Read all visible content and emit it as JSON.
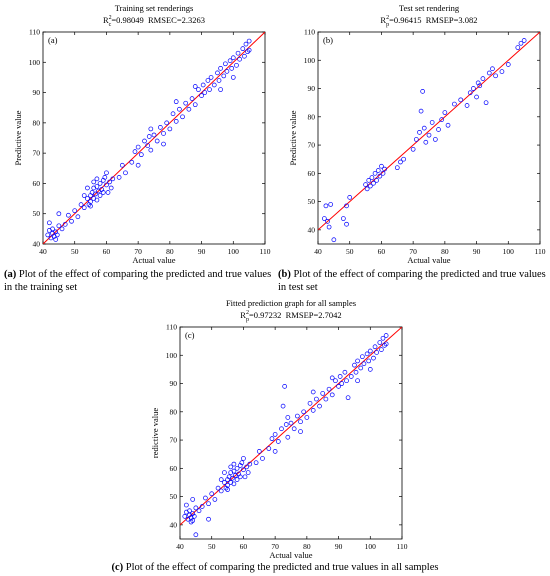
{
  "captions": {
    "a_tag": "(a)",
    "a_text": " Plot of the effect of comparing the predicted and true values in the training set",
    "b_tag": "(b)",
    "b_text": " Plot of the effect of comparing the predicted and true values in test set",
    "c_tag": "(c)",
    "c_text": " Plot of the effect of comparing the predicted and true values in all samples"
  },
  "chart_data": [
    {
      "type": "scatter",
      "panel_label": "(a)",
      "title": "Training set renderings",
      "stats_r2": "0.98049",
      "stats_r2_sub": "c",
      "stats_rmse": "RMSEC=2.3263",
      "xlabel": "Actual value",
      "ylabel": "Predictive value",
      "xlim": [
        40,
        110
      ],
      "ylim": [
        40,
        110
      ],
      "xticks": [
        40,
        50,
        60,
        70,
        80,
        90,
        100,
        110
      ],
      "yticks": [
        40,
        50,
        60,
        70,
        80,
        90,
        100,
        110
      ],
      "grid": false,
      "fit_line": {
        "x": [
          40,
          110
        ],
        "y": [
          40,
          110
        ],
        "color": "#ff0000"
      },
      "marker_color": "#0000ff",
      "points": [
        [
          41.5,
          43.0
        ],
        [
          42.0,
          44.5
        ],
        [
          42.5,
          42.0
        ],
        [
          43.0,
          43.5
        ],
        [
          43.0,
          45.0
        ],
        [
          43.5,
          42.5
        ],
        [
          44.0,
          44.0
        ],
        [
          44.0,
          41.5
        ],
        [
          44.5,
          43.0
        ],
        [
          45.0,
          46.0
        ],
        [
          42.0,
          47.0
        ],
        [
          46.0,
          45.0
        ],
        [
          47.0,
          46.5
        ],
        [
          45.0,
          50.0
        ],
        [
          48.0,
          49.5
        ],
        [
          49.0,
          47.5
        ],
        [
          50.0,
          51.0
        ],
        [
          51.0,
          49.0
        ],
        [
          52.0,
          53.0
        ],
        [
          53.0,
          52.0
        ],
        [
          54.0,
          55.0
        ],
        [
          54.5,
          53.0
        ],
        [
          55.0,
          56.0
        ],
        [
          55.0,
          54.0
        ],
        [
          55.5,
          57.0
        ],
        [
          56.0,
          55.0
        ],
        [
          56.0,
          58.5
        ],
        [
          56.5,
          56.5
        ],
        [
          57.0,
          54.5
        ],
        [
          57.0,
          59.0
        ],
        [
          57.5,
          57.5
        ],
        [
          58.0,
          56.0
        ],
        [
          58.0,
          60.0
        ],
        [
          58.5,
          58.0
        ],
        [
          59.0,
          61.0
        ],
        [
          59.0,
          57.0
        ],
        [
          59.5,
          62.0
        ],
        [
          60.0,
          59.5
        ],
        [
          60.5,
          57.0
        ],
        [
          61.0,
          60.5
        ],
        [
          55.0,
          52.5
        ],
        [
          56.0,
          60.5
        ],
        [
          57.0,
          61.5
        ],
        [
          54.0,
          58.5
        ],
        [
          53.0,
          56.0
        ],
        [
          60.0,
          63.5
        ],
        [
          61.5,
          58.5
        ],
        [
          62.0,
          61.5
        ],
        [
          64.0,
          62.0
        ],
        [
          65.0,
          66.0
        ],
        [
          66.0,
          63.5
        ],
        [
          68.0,
          67.0
        ],
        [
          69.0,
          70.5
        ],
        [
          70.0,
          72.0
        ],
        [
          71.0,
          69.5
        ],
        [
          72.0,
          74.0
        ],
        [
          73.0,
          72.5
        ],
        [
          73.5,
          75.5
        ],
        [
          74.0,
          71.0
        ],
        [
          75.0,
          76.0
        ],
        [
          76.0,
          74.0
        ],
        [
          77.0,
          78.5
        ],
        [
          78.0,
          76.5
        ],
        [
          79.0,
          80.0
        ],
        [
          80.0,
          78.0
        ],
        [
          81.0,
          83.0
        ],
        [
          82.0,
          80.5
        ],
        [
          83.0,
          84.5
        ],
        [
          84.0,
          82.0
        ],
        [
          85.0,
          86.5
        ],
        [
          86.0,
          84.5
        ],
        [
          87.0,
          88.0
        ],
        [
          88.0,
          86.0
        ],
        [
          89.0,
          91.0
        ],
        [
          90.0,
          89.0
        ],
        [
          90.5,
          92.5
        ],
        [
          91.0,
          90.0
        ],
        [
          92.0,
          94.0
        ],
        [
          92.5,
          91.0
        ],
        [
          93.0,
          95.0
        ],
        [
          94.0,
          92.5
        ],
        [
          95.0,
          96.5
        ],
        [
          95.5,
          94.0
        ],
        [
          96.0,
          98.0
        ],
        [
          97.0,
          95.5
        ],
        [
          97.5,
          99.5
        ],
        [
          98.0,
          97.0
        ],
        [
          99.0,
          100.5
        ],
        [
          99.5,
          98.0
        ],
        [
          100.0,
          101.5
        ],
        [
          101.0,
          99.0
        ],
        [
          101.5,
          103.0
        ],
        [
          102.0,
          101.0
        ],
        [
          103.0,
          104.5
        ],
        [
          103.5,
          102.0
        ],
        [
          104.0,
          106.0
        ],
        [
          104.5,
          103.5
        ],
        [
          105.0,
          107.0
        ],
        [
          105.0,
          104.0
        ],
        [
          100.0,
          95.0
        ],
        [
          96.0,
          91.0
        ],
        [
          88.0,
          92.0
        ],
        [
          82.0,
          87.0
        ],
        [
          78.0,
          73.0
        ],
        [
          74.0,
          78.0
        ],
        [
          70.0,
          66.0
        ]
      ]
    },
    {
      "type": "scatter",
      "panel_label": "(b)",
      "title": "Test set rendering",
      "stats_r2": "0.96415",
      "stats_r2_sub": "p",
      "stats_rmse": "RMSEP=3.082",
      "xlabel": "Actual value",
      "ylabel": "Predictive value",
      "xlim": [
        40,
        110
      ],
      "ylim": [
        35,
        110
      ],
      "xticks": [
        40,
        50,
        60,
        70,
        80,
        90,
        100,
        110
      ],
      "yticks": [
        40,
        50,
        60,
        70,
        80,
        90,
        100,
        110
      ],
      "grid": false,
      "fit_line": {
        "x": [
          40,
          110
        ],
        "y": [
          40,
          110
        ],
        "color": "#ff0000"
      },
      "marker_color": "#0000ff",
      "points": [
        [
          42.0,
          44.0
        ],
        [
          42.5,
          48.5
        ],
        [
          43.0,
          43.0
        ],
        [
          43.5,
          41.0
        ],
        [
          44.0,
          49.0
        ],
        [
          45.0,
          36.5
        ],
        [
          48.0,
          44.0
        ],
        [
          49.0,
          42.0
        ],
        [
          49.0,
          48.5
        ],
        [
          50.0,
          51.5
        ],
        [
          55.0,
          56.0
        ],
        [
          55.5,
          54.5
        ],
        [
          56.0,
          57.5
        ],
        [
          56.5,
          55.5
        ],
        [
          57.0,
          58.5
        ],
        [
          57.5,
          56.5
        ],
        [
          58.0,
          60.0
        ],
        [
          58.5,
          57.5
        ],
        [
          59.0,
          61.0
        ],
        [
          59.5,
          59.0
        ],
        [
          60.0,
          62.5
        ],
        [
          60.5,
          60.0
        ],
        [
          61.0,
          61.5
        ],
        [
          65.0,
          62.0
        ],
        [
          66.0,
          64.0
        ],
        [
          67.0,
          65.0
        ],
        [
          70.0,
          68.5
        ],
        [
          71.0,
          72.0
        ],
        [
          72.0,
          74.5
        ],
        [
          72.5,
          82.0
        ],
        [
          73.0,
          89.0
        ],
        [
          73.5,
          76.0
        ],
        [
          74.0,
          71.0
        ],
        [
          75.0,
          73.5
        ],
        [
          76.0,
          78.0
        ],
        [
          77.0,
          72.0
        ],
        [
          78.0,
          75.5
        ],
        [
          79.0,
          79.0
        ],
        [
          80.0,
          81.5
        ],
        [
          81.0,
          77.0
        ],
        [
          83.0,
          84.5
        ],
        [
          85.0,
          86.0
        ],
        [
          87.0,
          84.0
        ],
        [
          88.0,
          88.5
        ],
        [
          89.0,
          90.0
        ],
        [
          90.0,
          87.0
        ],
        [
          90.5,
          92.0
        ],
        [
          91.0,
          91.0
        ],
        [
          92.0,
          93.5
        ],
        [
          93.0,
          85.0
        ],
        [
          94.0,
          95.5
        ],
        [
          95.0,
          97.0
        ],
        [
          96.0,
          94.5
        ],
        [
          98.0,
          96.0
        ],
        [
          100.0,
          98.5
        ],
        [
          103.0,
          104.5
        ],
        [
          104.0,
          106.0
        ],
        [
          105.0,
          107.0
        ]
      ]
    },
    {
      "type": "scatter",
      "panel_label": "(c)",
      "title": "Fitted prediction graph for all samples",
      "stats_r2": "0.97232",
      "stats_r2_sub": "p",
      "stats_rmse": "RMSEP=2.7042",
      "xlabel": "Actual value",
      "ylabel": "redictive value",
      "xlim": [
        40,
        110
      ],
      "ylim": [
        35,
        110
      ],
      "xticks": [
        40,
        50,
        60,
        70,
        80,
        90,
        100,
        110
      ],
      "yticks": [
        40,
        50,
        60,
        70,
        80,
        90,
        100,
        110
      ],
      "grid": false,
      "fit_line": {
        "x": [
          40,
          110
        ],
        "y": [
          40,
          110
        ],
        "color": "#ff0000"
      },
      "marker_color": "#0000ff",
      "points": [
        [
          41.5,
          43.0
        ],
        [
          42.0,
          44.5
        ],
        [
          42.5,
          42.0
        ],
        [
          43.0,
          43.5
        ],
        [
          43.0,
          45.0
        ],
        [
          43.5,
          42.5
        ],
        [
          44.0,
          44.0
        ],
        [
          44.0,
          41.5
        ],
        [
          44.5,
          43.0
        ],
        [
          45.0,
          46.0
        ],
        [
          42.0,
          47.0
        ],
        [
          46.0,
          45.0
        ],
        [
          47.0,
          46.5
        ],
        [
          45.0,
          36.5
        ],
        [
          48.0,
          49.5
        ],
        [
          49.0,
          47.5
        ],
        [
          50.0,
          51.0
        ],
        [
          51.0,
          49.0
        ],
        [
          52.0,
          53.0
        ],
        [
          53.0,
          52.0
        ],
        [
          54.0,
          55.0
        ],
        [
          54.5,
          53.0
        ],
        [
          55.0,
          56.0
        ],
        [
          55.0,
          54.0
        ],
        [
          55.5,
          57.0
        ],
        [
          56.0,
          55.0
        ],
        [
          56.0,
          58.5
        ],
        [
          56.5,
          56.5
        ],
        [
          57.0,
          54.5
        ],
        [
          57.0,
          59.0
        ],
        [
          57.5,
          57.5
        ],
        [
          58.0,
          56.0
        ],
        [
          58.0,
          60.0
        ],
        [
          58.5,
          58.0
        ],
        [
          59.0,
          61.0
        ],
        [
          59.0,
          57.0
        ],
        [
          59.5,
          62.0
        ],
        [
          60.0,
          59.5
        ],
        [
          60.5,
          57.0
        ],
        [
          61.0,
          60.5
        ],
        [
          55.0,
          52.5
        ],
        [
          56.0,
          60.5
        ],
        [
          57.0,
          61.5
        ],
        [
          54.0,
          58.5
        ],
        [
          53.0,
          56.0
        ],
        [
          60.0,
          63.5
        ],
        [
          61.5,
          58.5
        ],
        [
          62.0,
          61.5
        ],
        [
          64.0,
          62.0
        ],
        [
          65.0,
          66.0
        ],
        [
          66.0,
          63.5
        ],
        [
          68.0,
          67.0
        ],
        [
          69.0,
          70.5
        ],
        [
          70.0,
          72.0
        ],
        [
          71.0,
          69.5
        ],
        [
          72.0,
          74.0
        ],
        [
          72.5,
          82.0
        ],
        [
          73.0,
          89.0
        ],
        [
          73.5,
          75.5
        ],
        [
          74.0,
          71.0
        ],
        [
          75.0,
          76.0
        ],
        [
          76.0,
          74.0
        ],
        [
          77.0,
          78.5
        ],
        [
          78.0,
          76.5
        ],
        [
          79.0,
          80.0
        ],
        [
          80.0,
          78.0
        ],
        [
          81.0,
          83.0
        ],
        [
          82.0,
          80.5
        ],
        [
          83.0,
          84.5
        ],
        [
          84.0,
          82.0
        ],
        [
          85.0,
          86.5
        ],
        [
          86.0,
          84.5
        ],
        [
          87.0,
          88.0
        ],
        [
          88.0,
          86.0
        ],
        [
          89.0,
          91.0
        ],
        [
          90.0,
          89.0
        ],
        [
          90.5,
          92.5
        ],
        [
          91.0,
          90.0
        ],
        [
          92.0,
          94.0
        ],
        [
          92.5,
          91.0
        ],
        [
          93.0,
          85.0
        ],
        [
          94.0,
          92.5
        ],
        [
          95.0,
          96.5
        ],
        [
          95.5,
          94.0
        ],
        [
          96.0,
          98.0
        ],
        [
          97.0,
          95.5
        ],
        [
          97.5,
          99.5
        ],
        [
          98.0,
          97.0
        ],
        [
          99.0,
          100.5
        ],
        [
          99.5,
          98.0
        ],
        [
          100.0,
          101.5
        ],
        [
          101.0,
          99.0
        ],
        [
          101.5,
          103.0
        ],
        [
          102.0,
          101.0
        ],
        [
          103.0,
          104.5
        ],
        [
          103.5,
          102.0
        ],
        [
          104.0,
          106.0
        ],
        [
          104.5,
          103.5
        ],
        [
          105.0,
          107.0
        ],
        [
          105.0,
          104.0
        ],
        [
          100.0,
          95.0
        ],
        [
          96.0,
          91.0
        ],
        [
          88.0,
          92.0
        ],
        [
          82.0,
          87.0
        ],
        [
          78.0,
          73.0
        ],
        [
          74.0,
          78.0
        ],
        [
          70.0,
          66.0
        ],
        [
          49.0,
          42.0
        ],
        [
          44.0,
          49.0
        ],
        [
          43.5,
          41.0
        ]
      ]
    }
  ]
}
